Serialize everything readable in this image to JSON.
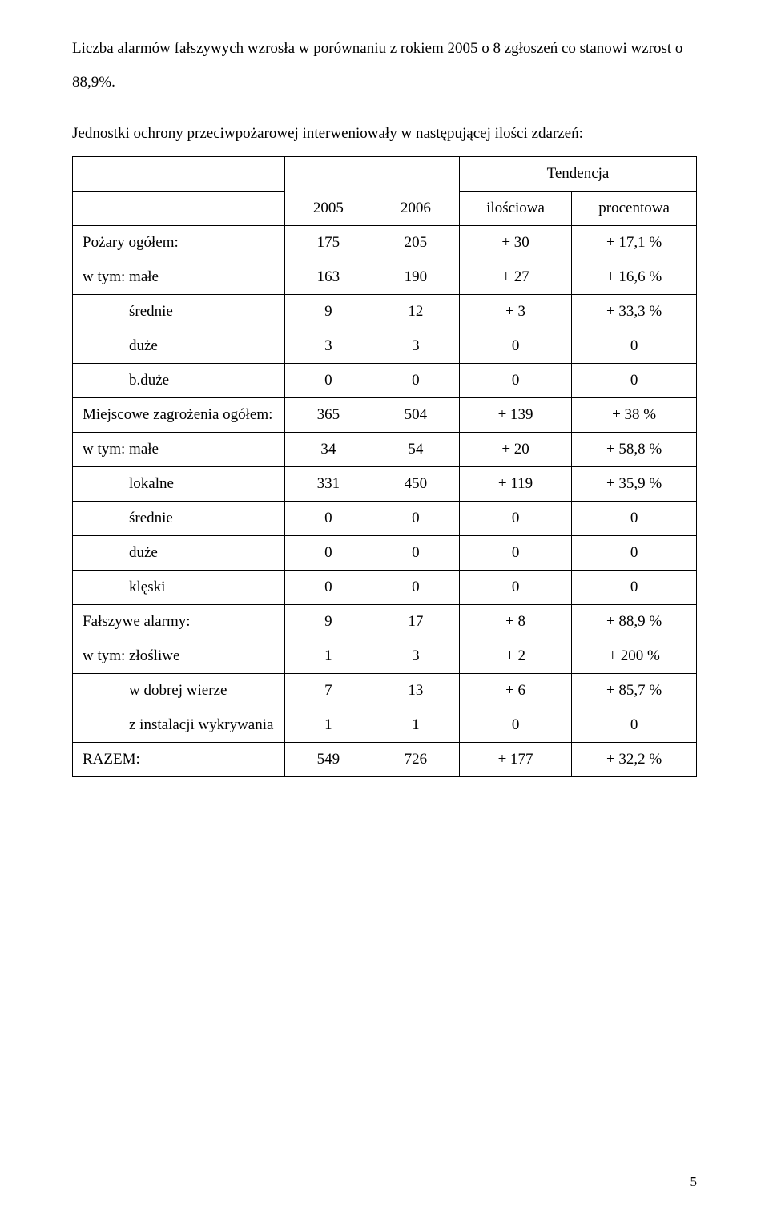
{
  "paragraph1": "Liczba alarmów fałszywych wzrosła w porównaniu z rokiem 2005 o 8 zgłoszeń co stanowi wzrost o 88,9%.",
  "paragraph2": "Jednostki ochrony przeciwpożarowej interweniowały w następującej ilości zdarzeń:",
  "header": {
    "tendencja": "Tendencja",
    "year1": "2005",
    "year2": "2006",
    "ilosciowa": "ilościowa",
    "procentowa": "procentowa"
  },
  "rows": [
    {
      "label": "Pożary ogółem:",
      "indent": 0,
      "c1": "175",
      "c2": "205",
      "c3": "+ 30",
      "c4": "+ 17,1 %"
    },
    {
      "label": "w tym: małe",
      "indent": 0,
      "c1": "163",
      "c2": "190",
      "c3": "+ 27",
      "c4": "+ 16,6 %"
    },
    {
      "label": "średnie",
      "indent": 1,
      "c1": "9",
      "c2": "12",
      "c3": "+ 3",
      "c4": "+ 33,3 %"
    },
    {
      "label": "duże",
      "indent": 1,
      "c1": "3",
      "c2": "3",
      "c3": "0",
      "c4": "0"
    },
    {
      "label": "b.duże",
      "indent": 1,
      "c1": "0",
      "c2": "0",
      "c3": "0",
      "c4": "0"
    },
    {
      "label": "Miejscowe zagrożenia ogółem:",
      "indent": 0,
      "c1": "365",
      "c2": "504",
      "c3": "+ 139",
      "c4": "+ 38 %"
    },
    {
      "label": "w tym:  małe",
      "indent": 0,
      "c1": "34",
      "c2": "54",
      "c3": "+ 20",
      "c4": "+ 58,8 %"
    },
    {
      "label": "lokalne",
      "indent": 1,
      "c1": "331",
      "c2": "450",
      "c3": "+ 119",
      "c4": "+ 35,9 %"
    },
    {
      "label": "średnie",
      "indent": 1,
      "c1": "0",
      "c2": "0",
      "c3": "0",
      "c4": "0"
    },
    {
      "label": "duże",
      "indent": 1,
      "c1": "0",
      "c2": "0",
      "c3": "0",
      "c4": "0"
    },
    {
      "label": "klęski",
      "indent": 1,
      "c1": "0",
      "c2": "0",
      "c3": "0",
      "c4": "0"
    },
    {
      "label": "Fałszywe alarmy:",
      "indent": 0,
      "c1": "9",
      "c2": "17",
      "c3": "+ 8",
      "c4": "+ 88,9 %"
    },
    {
      "label": "w tym: złośliwe",
      "indent": 0,
      "c1": "1",
      "c2": "3",
      "c3": "+ 2",
      "c4": "+ 200 %"
    },
    {
      "label": "w dobrej wierze",
      "indent": 1,
      "c1": "7",
      "c2": "13",
      "c3": "+ 6",
      "c4": "+ 85,7 %"
    },
    {
      "label": "z instalacji wykrywania",
      "indent": 1,
      "c1": "1",
      "c2": "1",
      "c3": "0",
      "c4": "0"
    },
    {
      "label": "RAZEM:",
      "indent": 0,
      "c1": "549",
      "c2": "726",
      "c3": "+ 177",
      "c4": "+ 32,2 %"
    }
  ],
  "page_number": "5",
  "col_widths": [
    "34%",
    "14%",
    "14%",
    "18%",
    "20%"
  ]
}
